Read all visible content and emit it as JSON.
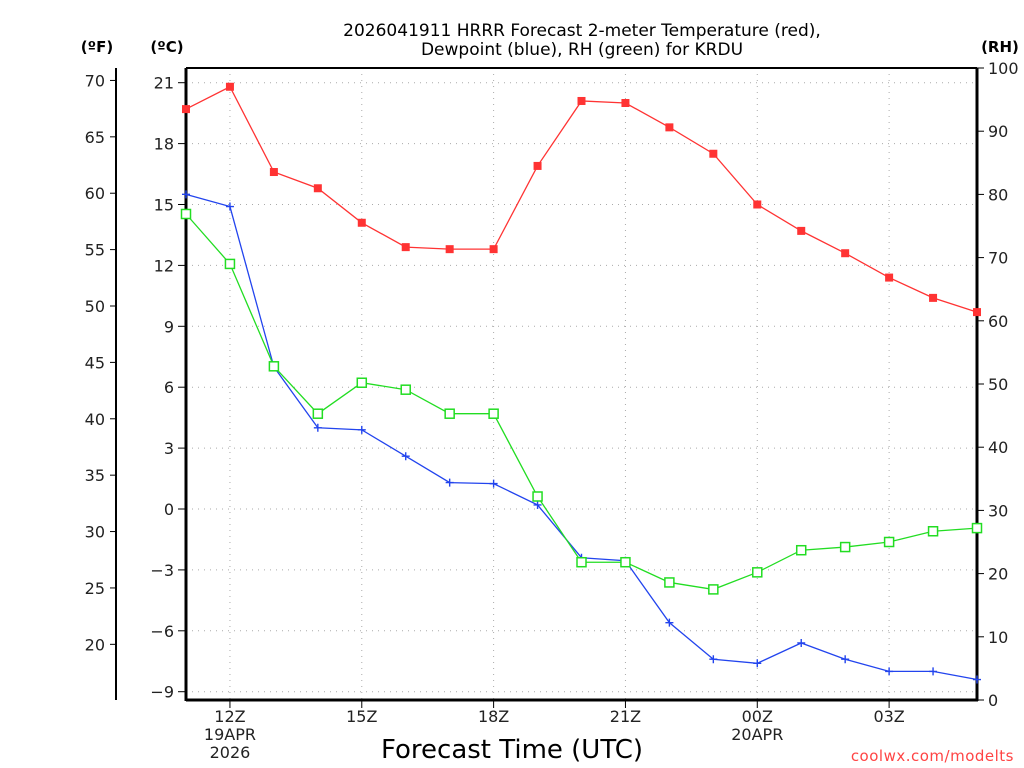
{
  "chart_data": {
    "type": "line",
    "title_lines": [
      "2026041911 HRRR Forecast 2-meter Temperature (red),",
      "Dewpoint (blue), RH (green) for KRDU"
    ],
    "xlabel": "Forecast Time (UTC)",
    "credit": "coolwx.com/modelts",
    "axes": {
      "fahrenheit": {
        "label": "(ºF)",
        "ticks": [
          70,
          65,
          60,
          55,
          50,
          45,
          40,
          35,
          30,
          25,
          20
        ]
      },
      "celsius": {
        "label": "(ºC)",
        "ticks": [
          21,
          18,
          15,
          12,
          9,
          6,
          3,
          0,
          -3,
          -6,
          -9
        ],
        "ylim": [
          -9.4,
          21.8
        ]
      },
      "rh": {
        "label": "(RH)",
        "ticks": [
          100,
          90,
          80,
          70,
          60,
          50,
          40,
          30,
          20,
          10,
          0
        ],
        "ylim": [
          0,
          100
        ]
      }
    },
    "x_hours": [
      "11Z",
      "12Z",
      "13Z",
      "14Z",
      "15Z",
      "16Z",
      "17Z",
      "18Z",
      "19Z",
      "20Z",
      "21Z",
      "22Z",
      "23Z",
      "00Z",
      "01Z",
      "02Z",
      "03Z",
      "04Z",
      "05Z"
    ],
    "x_ticks": [
      {
        "index": 1,
        "lines": [
          "12Z",
          "19APR",
          "2026"
        ]
      },
      {
        "index": 4,
        "lines": [
          "15Z"
        ]
      },
      {
        "index": 7,
        "lines": [
          "18Z"
        ]
      },
      {
        "index": 10,
        "lines": [
          "21Z"
        ]
      },
      {
        "index": 13,
        "lines": [
          "00Z",
          "20APR"
        ]
      },
      {
        "index": 16,
        "lines": [
          "03Z"
        ]
      }
    ],
    "series": [
      {
        "name": "Temperature",
        "units": "C",
        "axis": "celsius",
        "color": "#ff3333",
        "marker": "filled-square",
        "values": [
          19.7,
          20.8,
          16.6,
          15.8,
          14.1,
          12.9,
          12.8,
          12.8,
          16.9,
          20.1,
          20.0,
          18.8,
          17.5,
          15.0,
          13.7,
          12.6,
          11.4,
          10.4,
          9.7
        ]
      },
      {
        "name": "Dewpoint",
        "units": "C",
        "axis": "celsius",
        "color": "#2244ee",
        "marker": "plus",
        "values": [
          15.5,
          14.9,
          7.0,
          4.0,
          3.9,
          2.6,
          1.3,
          1.25,
          0.2,
          -2.4,
          -2.55,
          -5.6,
          -7.4,
          -7.6,
          -6.6,
          -7.4,
          -8.0,
          -8.0,
          -8.4
        ]
      },
      {
        "name": "RH",
        "units": "%",
        "axis": "rh",
        "color": "#22dd22",
        "marker": "open-square",
        "values": [
          76.9,
          69.0,
          52.8,
          45.3,
          50.2,
          49.1,
          45.3,
          45.3,
          32.2,
          21.8,
          21.8,
          18.6,
          17.5,
          20.2,
          23.7,
          24.2,
          25.0,
          26.7,
          27.2
        ]
      }
    ],
    "grid": true,
    "legend": "none (colors described in title)"
  }
}
